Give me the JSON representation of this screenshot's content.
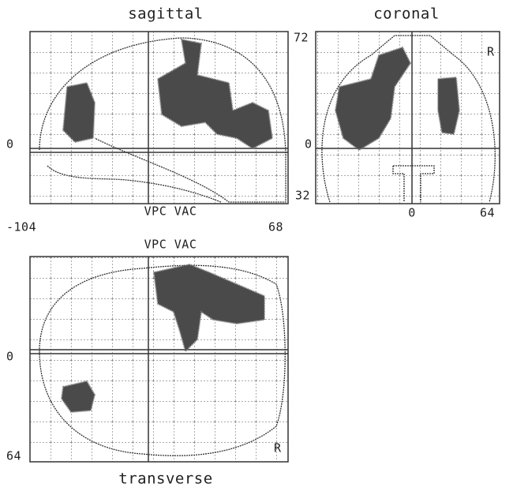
{
  "sagittal": {
    "title": "sagittal",
    "bottom_label": "VPC VAC",
    "y_zero": "0",
    "x_min": "-104",
    "x_max": "68"
  },
  "coronal": {
    "title": "coronal",
    "y_max": "72",
    "y_zero": "0",
    "y_min": "32",
    "x_zero": "0",
    "x_max": "64",
    "side": "R"
  },
  "transverse": {
    "title": "transverse",
    "top_label": "VPC VAC",
    "y_zero": "0",
    "y_max": "64",
    "side": "R"
  }
}
